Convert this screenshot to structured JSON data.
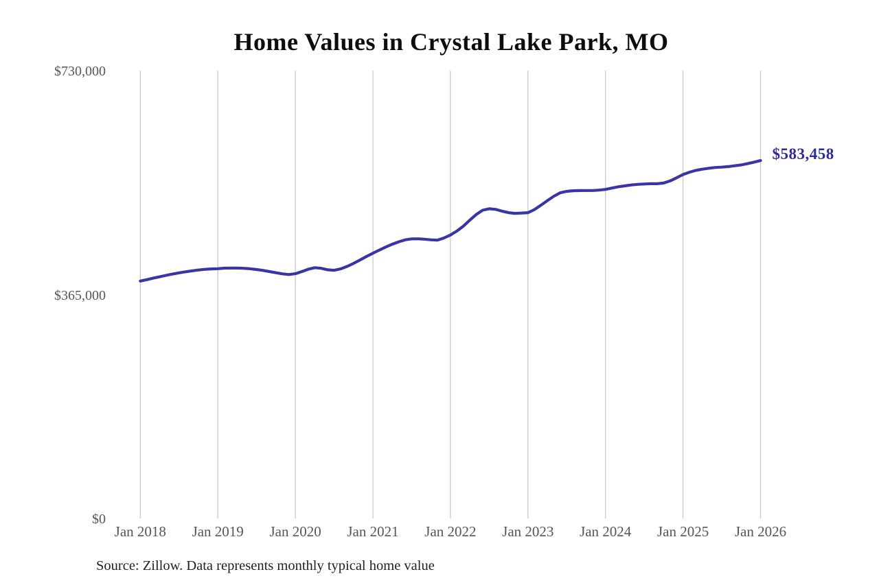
{
  "title": "Home Values in Crystal Lake Park, MO",
  "source_note": "Source: Zillow. Data represents monthly typical home value",
  "end_label": "$583,458",
  "colors": {
    "line": "#3a35a4",
    "end_label": "#2d2c9a",
    "gridline": "#c9c9c9",
    "axis_text": "#565656",
    "title_text": "#0d0d0d",
    "source_text": "#1f1f1f",
    "background": "#ffffff"
  },
  "chart_data": {
    "type": "line",
    "title": "Home Values in Crystal Lake Park, MO",
    "xlabel": "",
    "ylabel": "",
    "ylim": [
      0,
      730000
    ],
    "grid": "vertical-yearly-only",
    "legend": false,
    "x_start": "2018-01",
    "x_end": "2026-01",
    "frequency": "monthly",
    "x_tick_labels": [
      "Jan 2018",
      "Jan 2019",
      "Jan 2020",
      "Jan 2021",
      "Jan 2022",
      "Jan 2023",
      "Jan 2024",
      "Jan 2025",
      "Jan 2026"
    ],
    "y_ticks": [
      {
        "label": "$0",
        "value": 0
      },
      {
        "label": "$365,000",
        "value": 365000
      },
      {
        "label": "$730,000",
        "value": 730000
      }
    ],
    "final_value": 583458,
    "series": [
      {
        "name": "Monthly typical home value",
        "values": [
          387000,
          389300,
          391700,
          394000,
          396300,
          398400,
          400400,
          402100,
          403700,
          405000,
          406100,
          406800,
          407200,
          408000,
          408300,
          408200,
          407800,
          407000,
          405800,
          404300,
          402500,
          400600,
          398800,
          397600,
          399000,
          402500,
          406200,
          408800,
          407800,
          405400,
          404600,
          406800,
          410800,
          415800,
          421300,
          427000,
          432400,
          437600,
          442500,
          447000,
          451000,
          454200,
          455800,
          455900,
          455200,
          454200,
          453800,
          457200,
          462000,
          468500,
          476500,
          486300,
          495500,
          502500,
          504900,
          503800,
          500900,
          498500,
          497400,
          497800,
          498500,
          503500,
          510500,
          518000,
          525200,
          530900,
          533200,
          534200,
          534500,
          534600,
          534600,
          535300,
          536400,
          538600,
          540700,
          542200,
          543600,
          544600,
          545200,
          545600,
          545700,
          546800,
          550200,
          555300,
          560600,
          564400,
          567400,
          569300,
          570900,
          572100,
          572700,
          573600,
          574900,
          576300,
          578400,
          580900,
          583458
        ]
      }
    ]
  }
}
